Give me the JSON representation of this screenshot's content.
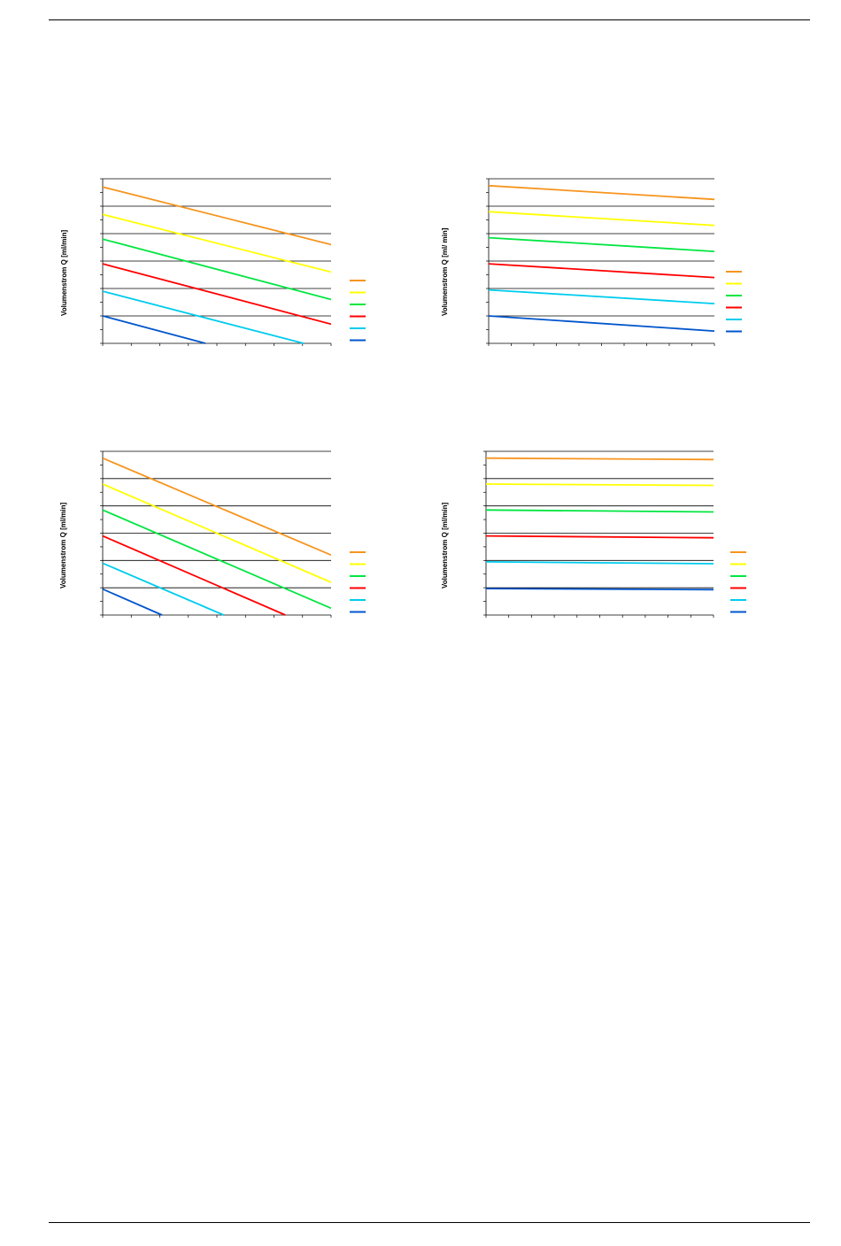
{
  "page": {
    "header_rule": true,
    "footer_rule": true
  },
  "colors": [
    "#F7941D",
    "#FFFF00",
    "#00E640",
    "#FF0000",
    "#00CCEE",
    "#0055CC"
  ],
  "chart_data": [
    {
      "type": "line",
      "ylabel": "Volumenstrom Q [ml/min]",
      "xlim": [
        0,
        10
      ],
      "ylim": [
        0,
        6
      ],
      "x_minor_ticks": 8,
      "y_minor_ticks": 12,
      "grid": "horizontal",
      "legend": "right",
      "series": [
        {
          "color": "#F7941D",
          "x": [
            0,
            10
          ],
          "y": [
            5.7,
            3.6
          ]
        },
        {
          "color": "#FFFF00",
          "x": [
            0,
            10
          ],
          "y": [
            4.7,
            2.6
          ]
        },
        {
          "color": "#00E640",
          "x": [
            0,
            10
          ],
          "y": [
            3.8,
            1.6
          ]
        },
        {
          "color": "#FF0000",
          "x": [
            0,
            10
          ],
          "y": [
            2.9,
            0.7
          ]
        },
        {
          "color": "#00CCEE",
          "x": [
            0,
            8.8
          ],
          "y": [
            1.9,
            0.0
          ]
        },
        {
          "color": "#0055CC",
          "x": [
            0,
            4.5
          ],
          "y": [
            1.0,
            0.0
          ]
        }
      ]
    },
    {
      "type": "line",
      "ylabel": "Volumenstrom Q [ml/ min]",
      "xlim": [
        0,
        10
      ],
      "ylim": [
        0,
        6
      ],
      "x_minor_ticks": 10,
      "y_minor_ticks": 12,
      "grid": "horizontal",
      "legend": "right",
      "series": [
        {
          "color": "#F7941D",
          "x": [
            0,
            10
          ],
          "y": [
            5.75,
            5.25
          ]
        },
        {
          "color": "#FFFF00",
          "x": [
            0,
            10
          ],
          "y": [
            4.8,
            4.3
          ]
        },
        {
          "color": "#00E640",
          "x": [
            0,
            10
          ],
          "y": [
            3.85,
            3.35
          ]
        },
        {
          "color": "#FF0000",
          "x": [
            0,
            10
          ],
          "y": [
            2.9,
            2.4
          ]
        },
        {
          "color": "#00CCEE",
          "x": [
            0,
            10
          ],
          "y": [
            1.95,
            1.45
          ]
        },
        {
          "color": "#0055CC",
          "x": [
            0,
            10
          ],
          "y": [
            1.0,
            0.45
          ]
        }
      ]
    },
    {
      "type": "line",
      "ylabel": "Volumenstrom Q [ml/min]",
      "xlim": [
        0,
        10
      ],
      "ylim": [
        0,
        6
      ],
      "x_minor_ticks": 8,
      "y_minor_ticks": 12,
      "grid": "horizontal",
      "legend": "right",
      "series": [
        {
          "color": "#F7941D",
          "x": [
            0,
            10
          ],
          "y": [
            5.75,
            2.2
          ]
        },
        {
          "color": "#FFFF00",
          "x": [
            0,
            10
          ],
          "y": [
            4.8,
            1.2
          ]
        },
        {
          "color": "#00E640",
          "x": [
            0,
            10
          ],
          "y": [
            3.85,
            0.25
          ]
        },
        {
          "color": "#FF0000",
          "x": [
            0,
            8.0
          ],
          "y": [
            2.9,
            0.0
          ]
        },
        {
          "color": "#00CCEE",
          "x": [
            0,
            5.3
          ],
          "y": [
            1.9,
            0.0
          ]
        },
        {
          "color": "#0055CC",
          "x": [
            0,
            2.6
          ],
          "y": [
            0.95,
            0.0
          ]
        }
      ]
    },
    {
      "type": "line",
      "ylabel": "Volumenstrom Q [ml/min]",
      "xlim": [
        0,
        10
      ],
      "ylim": [
        0,
        6
      ],
      "x_minor_ticks": 10,
      "y_minor_ticks": 12,
      "grid": "horizontal",
      "legend": "right",
      "series": [
        {
          "color": "#F7941D",
          "x": [
            0,
            10
          ],
          "y": [
            5.75,
            5.7
          ]
        },
        {
          "color": "#FFFF00",
          "x": [
            0,
            10
          ],
          "y": [
            4.8,
            4.75
          ]
        },
        {
          "color": "#00E640",
          "x": [
            0,
            10
          ],
          "y": [
            3.85,
            3.78
          ]
        },
        {
          "color": "#FF0000",
          "x": [
            0,
            10
          ],
          "y": [
            2.9,
            2.83
          ]
        },
        {
          "color": "#00CCEE",
          "x": [
            0,
            10
          ],
          "y": [
            1.95,
            1.88
          ]
        },
        {
          "color": "#0055CC",
          "x": [
            0,
            10
          ],
          "y": [
            0.97,
            0.93
          ]
        }
      ]
    }
  ]
}
